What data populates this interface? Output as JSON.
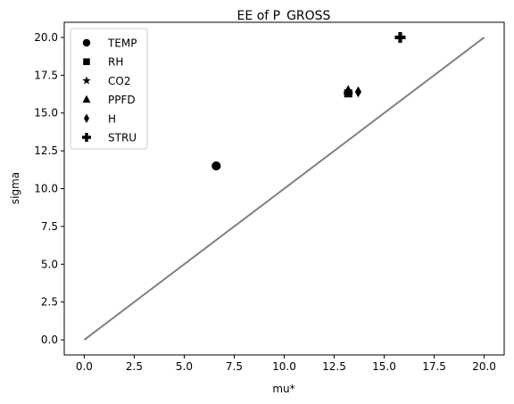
{
  "chart_data": {
    "type": "scatter",
    "title": "EE of P_GROSS",
    "xlabel": "mu*",
    "ylabel": "sigma",
    "xlim": [
      -1.0,
      21.0
    ],
    "ylim": [
      -1.0,
      21.0
    ],
    "xticks": [
      0.0,
      2.5,
      5.0,
      7.5,
      10.0,
      12.5,
      15.0,
      17.5,
      20.0
    ],
    "xtick_labels": [
      "0.0",
      "2.5",
      "5.0",
      "7.5",
      "10.0",
      "12.5",
      "15.0",
      "17.5",
      "20.0"
    ],
    "yticks": [
      0.0,
      2.5,
      5.0,
      7.5,
      10.0,
      12.5,
      15.0,
      17.5,
      20.0
    ],
    "ytick_labels": [
      "0.0",
      "2.5",
      "5.0",
      "7.5",
      "10.0",
      "12.5",
      "15.0",
      "17.5",
      "20.0"
    ],
    "legend_position": "top-left",
    "grid": false,
    "series": [
      {
        "name": "TEMP",
        "marker": "circle",
        "x": 6.6,
        "y": 11.5
      },
      {
        "name": "RH",
        "marker": "square",
        "x": 13.2,
        "y": 16.3
      },
      {
        "name": "CO2",
        "marker": "star",
        "x": 13.2,
        "y": 16.3
      },
      {
        "name": "PPFD",
        "marker": "triangle",
        "x": 13.2,
        "y": 16.5
      },
      {
        "name": "H",
        "marker": "diamond",
        "x": 13.7,
        "y": 16.4
      },
      {
        "name": "STRU",
        "marker": "plus",
        "x": 15.8,
        "y": 20.0
      }
    ],
    "reference_line": {
      "x": [
        0.0,
        20.0
      ],
      "y": [
        0.0,
        20.0
      ],
      "color": "#808080"
    },
    "marker_color": "#000000"
  }
}
